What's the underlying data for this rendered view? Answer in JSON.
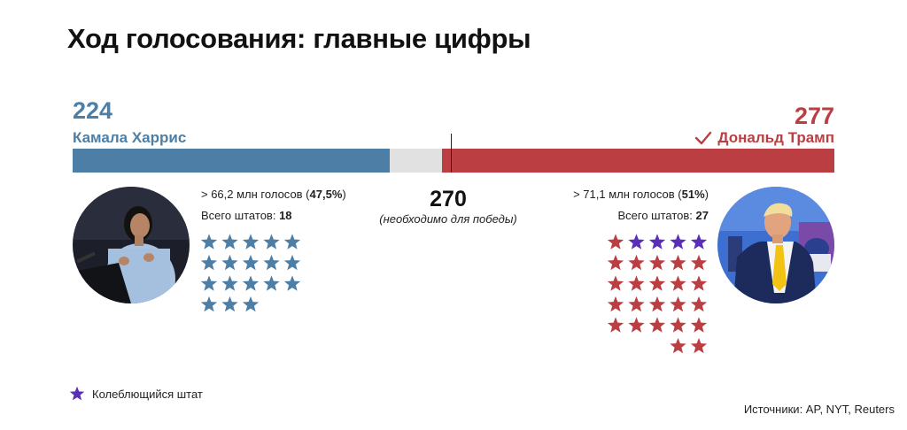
{
  "title": "Ход голосования: главные цифры",
  "chart_data": {
    "type": "bar",
    "title": "Ход голосования: главные цифры",
    "total_electoral_votes": 538,
    "threshold": {
      "value": 270,
      "label": "270",
      "caption": "(необходимо для победы)"
    },
    "series": [
      {
        "name": "Камала Харрис",
        "electoral_votes": 224,
        "votes_label": "224",
        "color": "#4d7ea6",
        "popular_vote_text": "> 66,2 млн голосов (",
        "popular_vote_pct": "47,5%",
        "popular_vote_close": ")",
        "states_text": "Всего штатов: ",
        "states_count": 18,
        "states_count_label": "18",
        "swing_states": 0
      },
      {
        "name": "Дональд Трамп",
        "electoral_votes": 277,
        "votes_label": "277",
        "color": "#bb3f42",
        "winner": true,
        "popular_vote_text": "> 71,1 млн голосов (",
        "popular_vote_pct": "51%",
        "popular_vote_close": ")",
        "states_text": "Всего штатов: ",
        "states_count": 27,
        "states_count_label": "27",
        "swing_states": 4
      }
    ],
    "remaining_color": "#e1e1e1",
    "swing_color": "#5a2fb8"
  },
  "legend": {
    "swing_label": "Колеблющийся штат"
  },
  "source": "Источники: AP, NYT, Reuters"
}
